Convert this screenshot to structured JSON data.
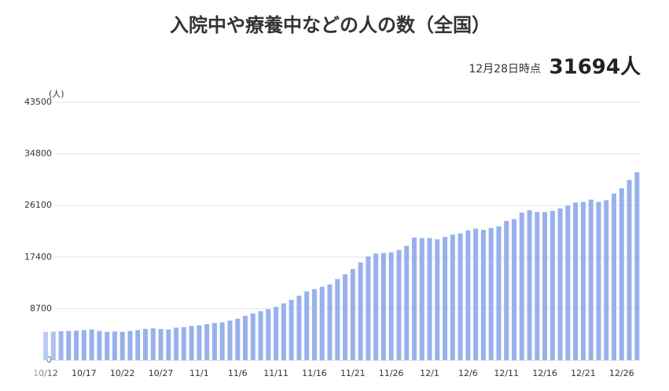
{
  "chart_data": {
    "type": "bar",
    "title": "入院中や療養中などの人の数（全国）",
    "as_of": "12月28日時点",
    "headline": "31694人",
    "y_label": "(人)",
    "color": "#97b1ee",
    "grid": true,
    "ylim": [
      0,
      43500
    ],
    "yticks": [
      0,
      8700,
      17400,
      26100,
      34800,
      43500
    ],
    "categories": [
      "10/12",
      null,
      null,
      null,
      null,
      "10/17",
      null,
      null,
      null,
      null,
      "10/22",
      null,
      null,
      null,
      null,
      "10/27",
      null,
      null,
      null,
      null,
      "11/1",
      null,
      null,
      null,
      null,
      "11/6",
      null,
      null,
      null,
      null,
      "11/11",
      null,
      null,
      null,
      null,
      "11/16",
      null,
      null,
      null,
      null,
      "11/21",
      null,
      null,
      null,
      null,
      "11/26",
      null,
      null,
      null,
      null,
      "12/1",
      null,
      null,
      null,
      null,
      "12/6",
      null,
      null,
      null,
      null,
      "12/11",
      null,
      null,
      null,
      null,
      "12/16",
      null,
      null,
      null,
      null,
      "12/21",
      null,
      null,
      null,
      null,
      "12/26",
      null,
      null
    ],
    "values": [
      4800,
      4850,
      4900,
      4950,
      5000,
      5100,
      5200,
      4950,
      4800,
      4850,
      4800,
      4950,
      5100,
      5300,
      5400,
      5300,
      5200,
      5500,
      5600,
      5800,
      5900,
      6100,
      6300,
      6400,
      6700,
      7000,
      7500,
      7900,
      8300,
      8600,
      9000,
      9600,
      10200,
      10900,
      11600,
      12000,
      12400,
      12800,
      13700,
      14500,
      15400,
      16500,
      17500,
      18000,
      18100,
      18200,
      18600,
      19300,
      20700,
      20600,
      20600,
      20400,
      20800,
      21200,
      21400,
      21900,
      22200,
      22000,
      22300,
      22600,
      23500,
      23800,
      24900,
      25300,
      25000,
      25000,
      25200,
      25600,
      26100,
      26600,
      26700,
      27100,
      26700,
      27000,
      28100,
      29000,
      30400,
      31694
    ]
  }
}
